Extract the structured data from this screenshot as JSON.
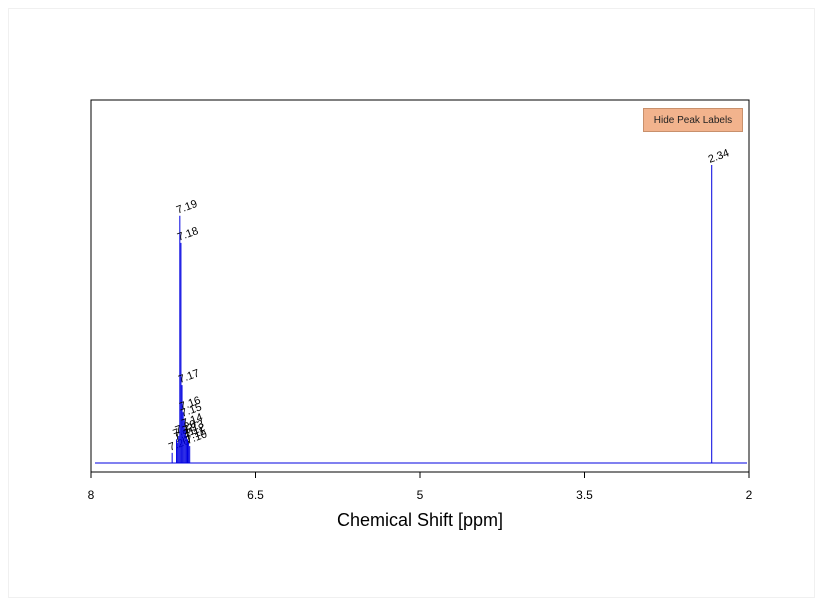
{
  "chart_data": {
    "type": "line",
    "title": "",
    "xlabel": "Chemical Shift [ppm]",
    "ylabel": "",
    "xlim": [
      8,
      2
    ],
    "x_reversed": true,
    "xticks": [
      "8",
      "6.5",
      "5",
      "3.5",
      "2"
    ],
    "ylim": [
      0,
      1
    ],
    "grid": false,
    "series": [
      {
        "peaks": [
          {
            "x": 7.26,
            "y": 0.03,
            "label": "7.26"
          },
          {
            "x": 7.22,
            "y": 0.07,
            "label": "7.22"
          },
          {
            "x": 7.21,
            "y": 0.06,
            "label": "7.21"
          },
          {
            "x": 7.2,
            "y": 0.08,
            "label": "7.20"
          },
          {
            "x": 7.19,
            "y": 0.73,
            "label": "7.19"
          },
          {
            "x": 7.18,
            "y": 0.65,
            "label": "7.18"
          },
          {
            "x": 7.17,
            "y": 0.23,
            "label": "7.17"
          },
          {
            "x": 7.16,
            "y": 0.15,
            "label": "7.16"
          },
          {
            "x": 7.15,
            "y": 0.13,
            "label": "7.15"
          },
          {
            "x": 7.14,
            "y": 0.1,
            "label": "7.14"
          },
          {
            "x": 7.13,
            "y": 0.08,
            "label": "7.13"
          },
          {
            "x": 7.12,
            "y": 0.07,
            "label": "7.12"
          },
          {
            "x": 7.11,
            "y": 0.06,
            "label": "7.11"
          },
          {
            "x": 7.1,
            "y": 0.05,
            "label": "7.10"
          },
          {
            "x": 2.34,
            "y": 0.88,
            "label": "2.34"
          }
        ]
      }
    ],
    "color": "#0000e0"
  },
  "controls": {
    "hide_peak_labels": "Hide Peak Labels"
  }
}
